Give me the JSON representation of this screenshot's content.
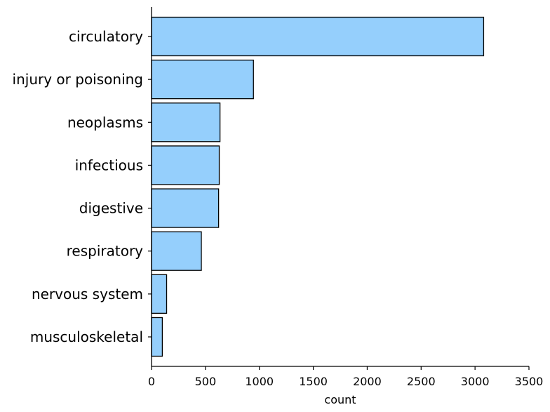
{
  "chart_data": {
    "type": "bar",
    "orientation": "horizontal",
    "categories": [
      "circulatory",
      "injury or poisoning",
      "neoplasms",
      "infectious",
      "digestive",
      "respiratory",
      "nervous system",
      "musculoskeletal"
    ],
    "values": [
      3080,
      945,
      635,
      628,
      622,
      462,
      140,
      100
    ],
    "xlabel": "count",
    "ylabel": "",
    "xlim": [
      0,
      3500
    ],
    "xticks": [
      "0",
      "500",
      "1000",
      "1500",
      "2000",
      "2500",
      "3000",
      "3500"
    ],
    "grid": false,
    "bar_color": "#95cffc",
    "edge_color": "#000000"
  }
}
